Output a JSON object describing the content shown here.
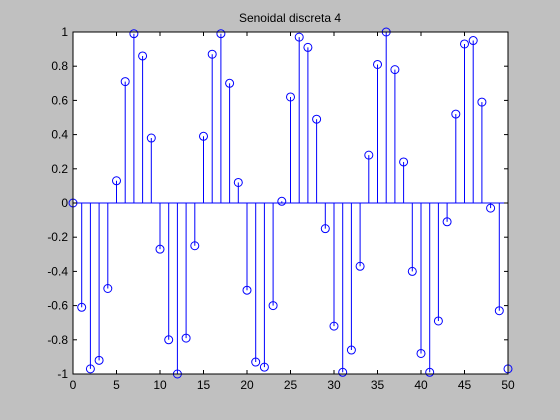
{
  "chart_data": {
    "type": "stem",
    "title": "Senoidal discreta 4",
    "xlabel": "",
    "ylabel": "",
    "xlim": [
      0,
      50
    ],
    "ylim": [
      -1,
      1
    ],
    "xticks": [
      0,
      5,
      10,
      15,
      20,
      25,
      30,
      35,
      40,
      45,
      50
    ],
    "xtick_labels": [
      "0",
      "5",
      "10",
      "15",
      "20",
      "25",
      "30",
      "35",
      "40",
      "45",
      "50"
    ],
    "yticks": [
      -1,
      -0.8,
      -0.6,
      -0.4,
      -0.2,
      0,
      0.2,
      0.4,
      0.6,
      0.8,
      1
    ],
    "ytick_labels": [
      "-1",
      "-0.8",
      "-0.6",
      "-0.4",
      "-0.2",
      "0",
      "0.2",
      "0.4",
      "0.6",
      "0.8",
      "1"
    ],
    "grid": false,
    "series": [
      {
        "x": [
          0,
          1,
          2,
          3,
          4,
          5,
          6,
          7,
          8,
          9,
          10,
          11,
          12,
          13,
          14,
          15,
          16,
          17,
          18,
          19,
          20,
          21,
          22,
          23,
          24,
          25,
          26,
          27,
          28,
          29,
          30,
          31,
          32,
          33,
          34,
          35,
          36,
          37,
          38,
          39,
          40,
          41,
          42,
          43,
          44,
          45,
          46,
          47,
          48,
          49,
          50
        ],
        "values": [
          0,
          -0.61,
          -0.97,
          -0.92,
          -0.5,
          0.13,
          0.71,
          0.99,
          0.86,
          0.38,
          -0.27,
          -0.8,
          -1.0,
          -0.79,
          -0.25,
          0.39,
          0.87,
          0.99,
          0.7,
          0.12,
          -0.51,
          -0.93,
          -0.96,
          -0.6,
          0.01,
          0.62,
          0.97,
          0.91,
          0.49,
          -0.15,
          -0.72,
          -0.99,
          -0.86,
          -0.37,
          0.28,
          0.81,
          1.0,
          0.78,
          0.24,
          -0.4,
          -0.88,
          -0.99,
          -0.69,
          -0.11,
          0.52,
          0.93,
          0.95,
          0.59,
          -0.03,
          -0.63,
          -0.97
        ]
      }
    ],
    "colors": {
      "stem": "#0000ff",
      "baseline": "#0000ff",
      "axes_bg": "#ffffff",
      "figure_bg": "#c0c0c0"
    }
  }
}
